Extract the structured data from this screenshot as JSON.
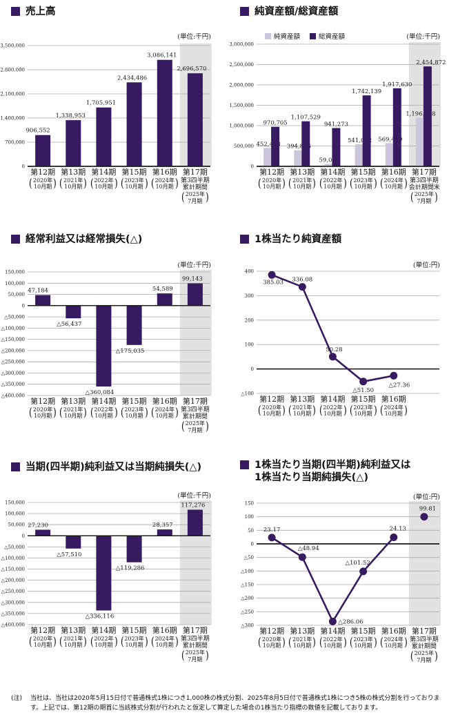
{
  "colors": {
    "series_dark": "#371b60",
    "series_light": "#cbc6db",
    "band": "#e2e2e2",
    "grid": "#a9a9a9",
    "axis": "#1a1a1a",
    "text": "#1a1a1a"
  },
  "footnote": {
    "marker": "(注)",
    "text": "当社は、当社は2020年5月15日付で普通株式1株につき1,000株の株式分割、2025年8月5日付で普通株式1株につき5株の株式分割を行っております。上記では、第12期の期首に当該株式分割が行われたと仮定して算定した場合の1株当たり指標の数値を記載しております。"
  },
  "chart_data": [
    {
      "id": "sales",
      "type": "bar",
      "title": "売上高",
      "unit": "(単位:千円)",
      "ymin": 0,
      "ymax": 3500000,
      "yticks": [
        {
          "v": 3500000,
          "label": "3,500,000"
        },
        {
          "v": 2800000,
          "label": "2,800,000"
        },
        {
          "v": 2100000,
          "label": "2,100,000"
        },
        {
          "v": 1400000,
          "label": "1,400,000"
        },
        {
          "v": 700000,
          "label": "700,000"
        },
        {
          "v": 0,
          "label": "0"
        }
      ],
      "values": [
        906552,
        1338953,
        1705951,
        2434486,
        3086141,
        2696570
      ],
      "value_labels": [
        "906,552",
        "1,338,953",
        "1,705,951",
        "2,434,486",
        "3,086,141",
        "2,696,570"
      ],
      "label_dx": [
        -7,
        -4,
        -4,
        -3,
        -4,
        -5
      ],
      "band_slot": 5,
      "categories": [
        {
          "l1": "第12期",
          "py": "2020年",
          "pm": "10月期"
        },
        {
          "l1": "第13期",
          "py": "2021年",
          "pm": "10月期"
        },
        {
          "l1": "第14期",
          "py": "2022年",
          "pm": "10月期"
        },
        {
          "l1": "第15期",
          "py": "2023年",
          "pm": "10月期"
        },
        {
          "l1": "第16期",
          "py": "2024年",
          "pm": "10月期"
        },
        {
          "l1": "第17期",
          "l2": "第3四半期",
          "l3": "累計期間",
          "py": "2025年",
          "pm": "7月期"
        }
      ]
    },
    {
      "id": "assets",
      "type": "grouped-bar",
      "title": "純資産額/総資産額",
      "unit": "(単位:千円)",
      "legend": [
        {
          "label": "純資産額",
          "color_key": "light"
        },
        {
          "label": "総資産額",
          "color_key": "dark"
        }
      ],
      "ymin": 0,
      "ymax": 3000000,
      "yticks": [
        {
          "v": 3000000,
          "label": "3,000,000"
        },
        {
          "v": 2500000,
          "label": "2,500,000"
        },
        {
          "v": 2000000,
          "label": "2,000,000"
        },
        {
          "v": 1500000,
          "label": "1,500,000"
        },
        {
          "v": 1000000,
          "label": "1,000,000"
        },
        {
          "v": 500000,
          "label": "500,000"
        },
        {
          "v": 0,
          "label": "0"
        }
      ],
      "series": [
        {
          "name": "純資産額",
          "color_key": "light",
          "values": [
            452408,
            394896,
            59079,
            541092,
            569449,
            1196188
          ],
          "labels": [
            "452,408",
            "394,896",
            "59,079",
            "541,092",
            "569,449",
            "1,196,188"
          ]
        },
        {
          "name": "総資産額",
          "color_key": "dark",
          "values": [
            970705,
            1107529,
            941273,
            1742139,
            1917630,
            2454872
          ],
          "labels": [
            "970,705",
            "1,107,529",
            "941,273",
            "1,742,139",
            "1,917,630",
            "2,454,872"
          ],
          "label_dx": [
            0,
            0,
            0,
            0,
            0,
            5
          ]
        }
      ],
      "band_slot": 5,
      "categories": [
        {
          "l1": "第12期",
          "py": "2020年",
          "pm": "10月期"
        },
        {
          "l1": "第13期",
          "py": "2021年",
          "pm": "10月期"
        },
        {
          "l1": "第14期",
          "py": "2022年",
          "pm": "10月期"
        },
        {
          "l1": "第15期",
          "py": "2023年",
          "pm": "10月期"
        },
        {
          "l1": "第16期",
          "py": "2024年",
          "pm": "10月期"
        },
        {
          "l1": "第17期",
          "l2": "第3四半期",
          "l3": "会計期間末",
          "py": "2025年",
          "pm": "7月期"
        }
      ]
    },
    {
      "id": "ordinary",
      "type": "bar",
      "title": "経常利益又は経常損失(△)",
      "unit": "(単位:千円)",
      "ymin": -400000,
      "ymax": 150000,
      "yticks": [
        {
          "v": 150000,
          "label": "150,000"
        },
        {
          "v": 100000,
          "label": "100,000"
        },
        {
          "v": 50000,
          "label": "50,000"
        },
        {
          "v": 0,
          "label": "0"
        },
        {
          "v": -50000,
          "label": "△50,000"
        },
        {
          "v": -100000,
          "label": "△100,000"
        },
        {
          "v": -150000,
          "label": "△150,000"
        },
        {
          "v": -200000,
          "label": "△200,000"
        },
        {
          "v": -250000,
          "label": "△250,000"
        },
        {
          "v": -300000,
          "label": "△300,000"
        },
        {
          "v": -350000,
          "label": "△350,000"
        },
        {
          "v": -400000,
          "label": "△400,000"
        }
      ],
      "values": [
        47184,
        -56437,
        -360084,
        -175035,
        54589,
        99143
      ],
      "value_labels": [
        "47,184",
        "△56,437",
        "△360,084",
        "△175,035",
        "54,589",
        "99,143"
      ],
      "label_dx": [
        -7,
        -6,
        -6,
        -6,
        -3,
        -4
      ],
      "band_slot": 5,
      "categories": [
        {
          "l1": "第12期",
          "py": "2020年",
          "pm": "10月期"
        },
        {
          "l1": "第13期",
          "py": "2021年",
          "pm": "10月期"
        },
        {
          "l1": "第14期",
          "py": "2022年",
          "pm": "10月期"
        },
        {
          "l1": "第15期",
          "py": "2023年",
          "pm": "10月期"
        },
        {
          "l1": "第16期",
          "py": "2024年",
          "pm": "10月期"
        },
        {
          "l1": "第17期",
          "l2": "第3四半期",
          "l3": "累計期間",
          "py": "2025年",
          "pm": "7月期"
        }
      ]
    },
    {
      "id": "bps",
      "type": "line",
      "title": "1株当たり純資産額",
      "unit": "(単位:円)",
      "ymin": -100,
      "ymax": 400,
      "yticks": [
        {
          "v": 400,
          "label": "400"
        },
        {
          "v": 300,
          "label": "300"
        },
        {
          "v": 200,
          "label": "200"
        },
        {
          "v": 100,
          "label": "100"
        },
        {
          "v": 0,
          "label": "0"
        },
        {
          "v": -100,
          "label": "△100"
        }
      ],
      "values": [
        385.03,
        336.08,
        50.28,
        -51.5,
        -27.36
      ],
      "value_labels": [
        "385.03",
        "336.08",
        "50.28",
        "△51.50",
        "△27.36"
      ],
      "label_dx": [
        2,
        0,
        2,
        0,
        8
      ],
      "label_dy": [
        13,
        -8,
        -8,
        15,
        16
      ],
      "categories": [
        {
          "l1": "第12期",
          "py": "2020年",
          "pm": "10月期"
        },
        {
          "l1": "第13期",
          "py": "2021年",
          "pm": "10月期"
        },
        {
          "l1": "第14期",
          "py": "2022年",
          "pm": "10月期"
        },
        {
          "l1": "第15期",
          "py": "2023年",
          "pm": "10月期"
        },
        {
          "l1": "第16期",
          "py": "2024年",
          "pm": "10月期"
        }
      ]
    },
    {
      "id": "netincome",
      "type": "bar",
      "title": "当期(四半期)純利益又は当期純損失(△)",
      "unit": "(単位:千円)",
      "ymin": -400000,
      "ymax": 150000,
      "yticks": [
        {
          "v": 150000,
          "label": "150,000"
        },
        {
          "v": 100000,
          "label": "100,000"
        },
        {
          "v": 50000,
          "label": "50,000"
        },
        {
          "v": 0,
          "label": "0"
        },
        {
          "v": -50000,
          "label": "△50,000"
        },
        {
          "v": -100000,
          "label": "△100,000"
        },
        {
          "v": -150000,
          "label": "△150,000"
        },
        {
          "v": -200000,
          "label": "△200,000"
        },
        {
          "v": -250000,
          "label": "△250,000"
        },
        {
          "v": -300000,
          "label": "△300,000"
        },
        {
          "v": -350000,
          "label": "△350,000"
        },
        {
          "v": -400000,
          "label": "△400,000"
        }
      ],
      "values": [
        27230,
        -57510,
        -336116,
        -119286,
        28357,
        117276
      ],
      "value_labels": [
        "27,230",
        "△57,510",
        "△336,116",
        "△119,286",
        "28,357",
        "117,276"
      ],
      "label_dx": [
        -7,
        -6,
        -6,
        -6,
        -3,
        -3
      ],
      "band_slot": 5,
      "categories": [
        {
          "l1": "第12期",
          "py": "2020年",
          "pm": "10月期"
        },
        {
          "l1": "第13期",
          "py": "2021年",
          "pm": "10月期"
        },
        {
          "l1": "第14期",
          "py": "2022年",
          "pm": "10月期"
        },
        {
          "l1": "第15期",
          "py": "2023年",
          "pm": "10月期"
        },
        {
          "l1": "第16期",
          "py": "2024年",
          "pm": "10月期"
        },
        {
          "l1": "第17期",
          "l2": "第3四半期",
          "l3": "累計期間",
          "py": "2025年",
          "pm": "7月期"
        }
      ]
    },
    {
      "id": "eps",
      "type": "line",
      "title": "1株当たり当期(四半期)純利益又は",
      "title2": "1株当たり当期純損失(△)",
      "unit": "(単位:円)",
      "ymin": -300,
      "ymax": 150,
      "yticks": [
        {
          "v": 150,
          "label": "150"
        },
        {
          "v": 100,
          "label": "100"
        },
        {
          "v": 50,
          "label": "50"
        },
        {
          "v": 0,
          "label": "0"
        },
        {
          "v": -50,
          "label": "△50"
        },
        {
          "v": -100,
          "label": "△100"
        },
        {
          "v": -150,
          "label": "△150"
        },
        {
          "v": -200,
          "label": "△200"
        },
        {
          "v": -250,
          "label": "△250"
        },
        {
          "v": -300,
          "label": "△300"
        }
      ],
      "values": [
        23.17,
        -48.94,
        -286.06,
        -101.52,
        24.13,
        99.81
      ],
      "value_labels": [
        "23.17",
        "△48.94",
        "△286.06",
        "△101.52",
        "24.13",
        "99.81"
      ],
      "connect_n": 5,
      "label_dx": [
        0,
        9,
        26,
        -8,
        6,
        5
      ],
      "label_dy": [
        -9,
        -10,
        3,
        -10,
        -10,
        -9
      ],
      "band_slot": 5,
      "categories": [
        {
          "l1": "第12期",
          "py": "2020年",
          "pm": "10月期"
        },
        {
          "l1": "第13期",
          "py": "2021年",
          "pm": "10月期"
        },
        {
          "l1": "第14期",
          "py": "2022年",
          "pm": "10月期"
        },
        {
          "l1": "第15期",
          "py": "2023年",
          "pm": "10月期"
        },
        {
          "l1": "第16期",
          "py": "2024年",
          "pm": "10月期"
        },
        {
          "l1": "第17期",
          "l2": "第3四半期",
          "l3": "累計期間",
          "py": "2025年",
          "pm": "7月期"
        }
      ]
    }
  ]
}
